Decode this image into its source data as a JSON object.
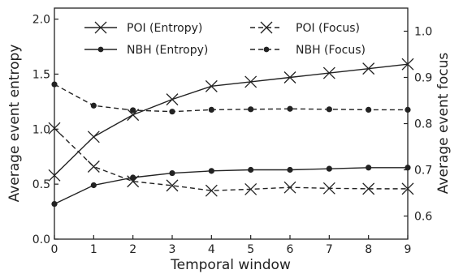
{
  "chart_data": {
    "type": "line",
    "xlabel": "Temporal window",
    "ylabel_left": "Average event entropy",
    "ylabel_right": "Average event focus",
    "x": [
      0,
      1,
      2,
      3,
      4,
      5,
      6,
      7,
      8,
      9
    ],
    "xlim": [
      0,
      9
    ],
    "ylim_left": [
      0.0,
      2.1
    ],
    "ylim_right": [
      0.55,
      1.05
    ],
    "x_ticks": [
      "0",
      "1",
      "2",
      "3",
      "4",
      "5",
      "6",
      "7",
      "8",
      "9"
    ],
    "y_left_ticks": [
      "0.0",
      "0.5",
      "1.0",
      "1.5",
      "2.0"
    ],
    "y_right_ticks": [
      "0.6",
      "0.7",
      "0.8",
      "0.9",
      "1.0"
    ],
    "grid": false,
    "legend_position": "top",
    "series": [
      {
        "name": "POI (Entropy)",
        "axis": "left",
        "marker": "x",
        "line_style": "solid",
        "values": [
          0.58,
          0.93,
          1.13,
          1.27,
          1.39,
          1.43,
          1.47,
          1.51,
          1.55,
          1.59
        ]
      },
      {
        "name": "NBH (Entropy)",
        "axis": "left",
        "marker": "dot",
        "line_style": "solid",
        "values": [
          0.32,
          0.49,
          0.56,
          0.6,
          0.62,
          0.63,
          0.63,
          0.64,
          0.65,
          0.65
        ]
      },
      {
        "name": "POI (Focus)",
        "axis": "right",
        "marker": "x",
        "line_style": "dashed",
        "values": [
          0.79,
          0.707,
          0.675,
          0.666,
          0.655,
          0.658,
          0.662,
          0.66,
          0.659,
          0.659
        ]
      },
      {
        "name": "NBH (Focus)",
        "axis": "right",
        "marker": "dot",
        "line_style": "dashed",
        "values": [
          0.885,
          0.839,
          0.829,
          0.826,
          0.83,
          0.831,
          0.832,
          0.831,
          0.83,
          0.83
        ]
      }
    ],
    "colors": {
      "line": "#222222",
      "axes": "#222222",
      "background": "#ffffff"
    }
  }
}
